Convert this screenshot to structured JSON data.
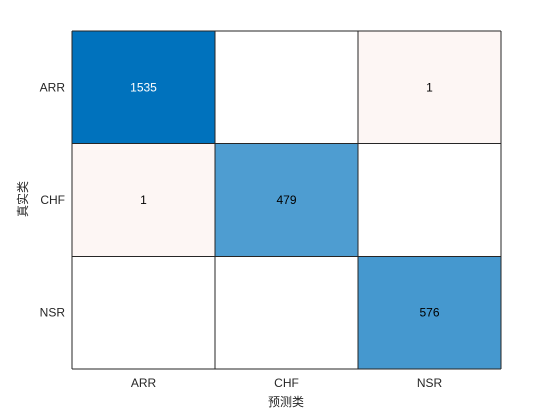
{
  "chart_data": {
    "type": "heatmap",
    "title": "",
    "xlabel": "预测类",
    "ylabel": "真实类",
    "x_categories": [
      "ARR",
      "CHF",
      "NSR"
    ],
    "y_categories": [
      "ARR",
      "CHF",
      "NSR"
    ],
    "values": [
      [
        1535,
        null,
        1
      ],
      [
        1,
        479,
        null
      ],
      [
        null,
        null,
        576
      ]
    ],
    "colors": {
      "diagonal_max": "#0072bd",
      "off_diagonal_tint": "#d95319",
      "empty": "#ffffff",
      "grid_line": "#262626",
      "dark_text": "#000000",
      "light_text": "#ffffff"
    },
    "grid": true,
    "legend": "none"
  }
}
